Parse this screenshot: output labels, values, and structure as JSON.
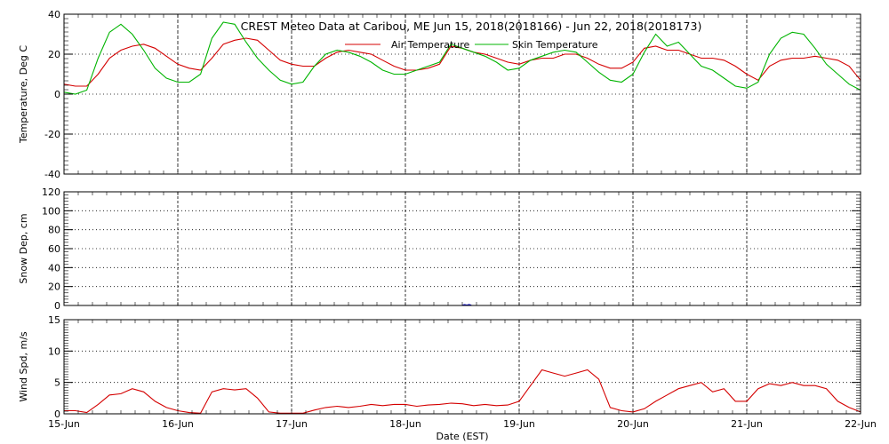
{
  "chart_data": [
    {
      "type": "line",
      "title": "CREST Meteo Data at Caribou, ME   Jun 15, 2018(2018166) - Jun 22, 2018(2018173)",
      "ylabel": "Temperature, Deg C",
      "ylim": [
        -40,
        40
      ],
      "yticks": [
        -40,
        -20,
        0,
        20,
        40
      ],
      "grid": true,
      "legend": "top-center",
      "series": [
        {
          "name": "Air Temperature",
          "color": "#d40000",
          "x": [
            0,
            0.1,
            0.2,
            0.3,
            0.4,
            0.5,
            0.6,
            0.7,
            0.8,
            0.9,
            1.0,
            1.1,
            1.2,
            1.3,
            1.4,
            1.5,
            1.6,
            1.7,
            1.8,
            1.9,
            2.0,
            2.1,
            2.2,
            2.3,
            2.4,
            2.5,
            2.6,
            2.7,
            2.8,
            2.9,
            3.0,
            3.1,
            3.2,
            3.3,
            3.4,
            3.5,
            3.6,
            3.7,
            3.8,
            3.9,
            4.0,
            4.1,
            4.2,
            4.3,
            4.4,
            4.5,
            4.6,
            4.7,
            4.8,
            4.9,
            5.0,
            5.1,
            5.2,
            5.3,
            5.4,
            5.5,
            5.6,
            5.7,
            5.8,
            5.9,
            6.0,
            6.1,
            6.2,
            6.3,
            6.4,
            6.5,
            6.6,
            6.7,
            6.8,
            6.9,
            7.0
          ],
          "y": [
            5,
            4,
            4,
            10,
            18,
            22,
            24,
            25,
            23,
            19,
            15,
            13,
            12,
            18,
            25,
            27,
            28,
            27,
            22,
            17,
            15,
            14,
            14,
            18,
            21,
            22,
            21,
            20,
            17,
            14,
            12,
            12,
            13,
            15,
            24,
            23,
            21,
            20,
            18,
            16,
            15,
            17,
            18,
            18,
            20,
            20,
            18,
            15,
            13,
            13,
            16,
            23,
            24,
            22,
            22,
            20,
            18,
            18,
            17,
            14,
            10,
            7,
            14,
            17,
            18,
            18,
            19,
            18,
            17,
            14,
            7
          ]
        },
        {
          "name": "Skin Temperature",
          "color": "#00b400",
          "x": [
            0,
            0.1,
            0.2,
            0.3,
            0.4,
            0.5,
            0.6,
            0.7,
            0.8,
            0.9,
            1.0,
            1.1,
            1.2,
            1.3,
            1.4,
            1.5,
            1.6,
            1.7,
            1.8,
            1.9,
            2.0,
            2.1,
            2.2,
            2.3,
            2.4,
            2.5,
            2.6,
            2.7,
            2.8,
            2.9,
            3.0,
            3.1,
            3.2,
            3.3,
            3.4,
            3.5,
            3.6,
            3.7,
            3.8,
            3.9,
            4.0,
            4.1,
            4.2,
            4.3,
            4.4,
            4.5,
            4.6,
            4.7,
            4.8,
            4.9,
            5.0,
            5.1,
            5.2,
            5.3,
            5.4,
            5.5,
            5.6,
            5.7,
            5.8,
            5.9,
            6.0,
            6.1,
            6.2,
            6.3,
            6.4,
            6.5,
            6.6,
            6.7,
            6.8,
            6.9,
            7.0
          ],
          "y": [
            1,
            0,
            2,
            18,
            31,
            35,
            30,
            22,
            13,
            8,
            6,
            6,
            10,
            28,
            36,
            35,
            26,
            18,
            12,
            7,
            5,
            6,
            14,
            20,
            22,
            21,
            19,
            16,
            12,
            10,
            10,
            12,
            14,
            16,
            25,
            23,
            21,
            19,
            16,
            12,
            13,
            17,
            19,
            21,
            22,
            21,
            16,
            11,
            7,
            6,
            10,
            21,
            30,
            24,
            26,
            20,
            14,
            12,
            8,
            4,
            3,
            6,
            20,
            28,
            31,
            30,
            23,
            15,
            10,
            5,
            2
          ]
        }
      ]
    },
    {
      "type": "line",
      "ylabel": "Snow Dep, cm",
      "ylim": [
        0,
        120
      ],
      "yticks": [
        0,
        20,
        40,
        60,
        80,
        100,
        120
      ],
      "grid": true,
      "series": [
        {
          "color": "#0000cc",
          "x": [
            3.5,
            3.52,
            3.54,
            3.56,
            3.58
          ],
          "y": [
            0.3,
            0.8,
            0.5,
            0.9,
            0.3
          ]
        }
      ]
    },
    {
      "type": "line",
      "ylabel": "Wind Spd, m/s",
      "xlabel": "Date (EST)",
      "ylim": [
        0,
        15
      ],
      "yticks": [
        0,
        5,
        10,
        15
      ],
      "grid": true,
      "categories": [
        "15-Jun",
        "16-Jun",
        "17-Jun",
        "18-Jun",
        "19-Jun",
        "20-Jun",
        "21-Jun",
        "22-Jun"
      ],
      "series": [
        {
          "color": "#d40000",
          "x": [
            0,
            0.1,
            0.2,
            0.3,
            0.4,
            0.5,
            0.6,
            0.7,
            0.8,
            0.9,
            1.0,
            1.1,
            1.2,
            1.3,
            1.4,
            1.5,
            1.6,
            1.7,
            1.8,
            1.9,
            2.0,
            2.1,
            2.2,
            2.3,
            2.4,
            2.5,
            2.6,
            2.7,
            2.8,
            2.9,
            3.0,
            3.1,
            3.2,
            3.3,
            3.4,
            3.5,
            3.6,
            3.7,
            3.8,
            3.9,
            4.0,
            4.1,
            4.2,
            4.3,
            4.4,
            4.5,
            4.6,
            4.7,
            4.8,
            4.9,
            5.0,
            5.1,
            5.2,
            5.3,
            5.4,
            5.5,
            5.6,
            5.7,
            5.8,
            5.9,
            6.0,
            6.1,
            6.2,
            6.3,
            6.4,
            6.5,
            6.6,
            6.7,
            6.8,
            6.9,
            7.0
          ],
          "y": [
            0.5,
            0.5,
            0.2,
            1.5,
            3,
            3.2,
            4,
            3.5,
            2,
            1,
            0.5,
            0.2,
            0.1,
            3.5,
            4,
            3.8,
            4,
            2.5,
            0.3,
            0.1,
            0.1,
            0.1,
            0.6,
            1,
            1.2,
            1,
            1.2,
            1.5,
            1.3,
            1.5,
            1.5,
            1.2,
            1.4,
            1.5,
            1.7,
            1.6,
            1.3,
            1.5,
            1.3,
            1.4,
            2,
            4.5,
            7,
            6.5,
            6,
            6.5,
            7,
            5.5,
            1,
            0.5,
            0.3,
            0.8,
            2,
            3,
            4,
            4.5,
            5,
            3.5,
            4,
            2,
            2,
            4,
            4.8,
            4.5,
            5,
            4.5,
            4.5,
            4,
            2,
            1,
            0.3
          ]
        }
      ]
    }
  ]
}
